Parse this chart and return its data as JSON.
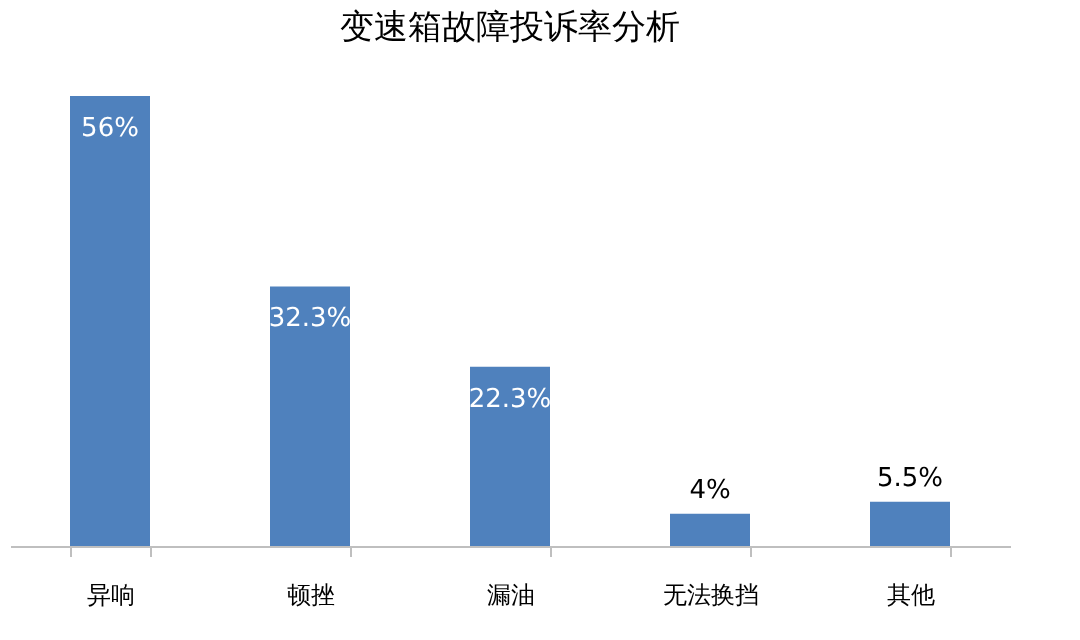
{
  "chart_data": {
    "type": "bar",
    "title": "变速箱故障投诉率分析",
    "categories": [
      "异响",
      "顿挫",
      "漏油",
      "无法换挡",
      "其他"
    ],
    "values": [
      56,
      32.3,
      22.3,
      4,
      5.5
    ],
    "value_labels": [
      "56%",
      "32.3%",
      "22.3%",
      "4%",
      "5.5%"
    ],
    "color": "#4f81bd",
    "grid": false
  }
}
